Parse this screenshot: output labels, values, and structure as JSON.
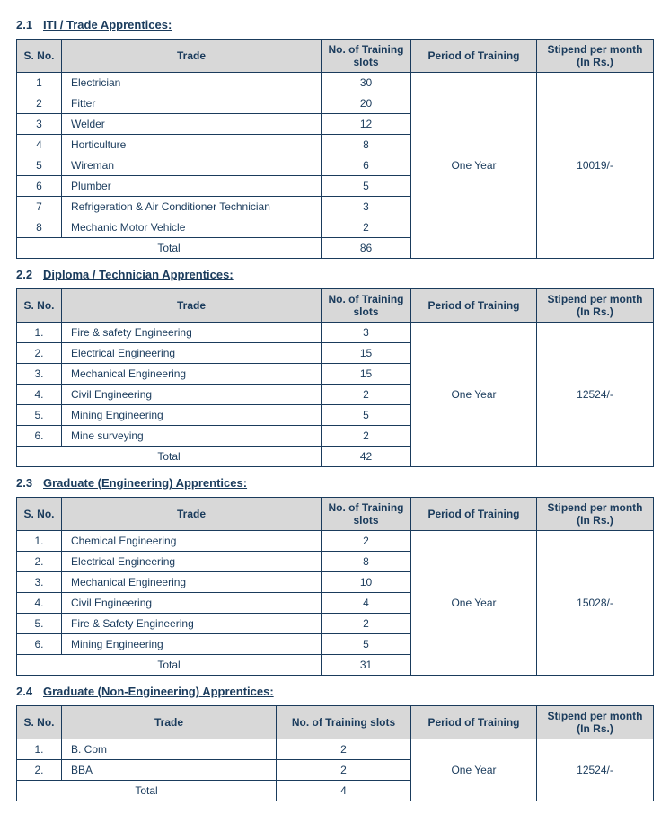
{
  "colors": {
    "text": "#1a3b5c",
    "header_bg": "#d8d8d8",
    "border": "#1a3b5c",
    "page_bg": "#ffffff"
  },
  "columns": {
    "sno": "S. No.",
    "trade": "Trade",
    "slots": "No. of Training slots",
    "period": "Period of Training",
    "stipend": "Stipend per month (In Rs.)"
  },
  "total_label": "Total",
  "sections": [
    {
      "num": "2.1",
      "title": "ITI / Trade Apprentices:",
      "period": "One Year",
      "stipend": "10019/-",
      "slots_col_width": 100,
      "rows": [
        {
          "sno": "1",
          "trade": "Electrician",
          "slots": "30"
        },
        {
          "sno": "2",
          "trade": "Fitter",
          "slots": "20"
        },
        {
          "sno": "3",
          "trade": "Welder",
          "slots": "12"
        },
        {
          "sno": "4",
          "trade": "Horticulture",
          "slots": "8"
        },
        {
          "sno": "5",
          "trade": "Wireman",
          "slots": "6"
        },
        {
          "sno": "6",
          "trade": "Plumber",
          "slots": "5"
        },
        {
          "sno": "7",
          "trade": "Refrigeration & Air Conditioner Technician",
          "slots": "3"
        },
        {
          "sno": "8",
          "trade": "Mechanic Motor Vehicle",
          "slots": "2"
        }
      ],
      "total": "86"
    },
    {
      "num": "2.2",
      "title": "Diploma / Technician Apprentices:",
      "period": "One Year",
      "stipend": "12524/-",
      "slots_col_width": 100,
      "rows": [
        {
          "sno": "1.",
          "trade": "Fire & safety Engineering",
          "slots": "3"
        },
        {
          "sno": "2.",
          "trade": "Electrical Engineering",
          "slots": "15"
        },
        {
          "sno": "3.",
          "trade": "Mechanical Engineering",
          "slots": "15"
        },
        {
          "sno": "4.",
          "trade": "Civil Engineering",
          "slots": "2"
        },
        {
          "sno": "5.",
          "trade": "Mining Engineering",
          "slots": "5"
        },
        {
          "sno": "6.",
          "trade": "Mine surveying",
          "slots": "2"
        }
      ],
      "total": "42"
    },
    {
      "num": "2.3",
      "title": "Graduate (Engineering) Apprentices:",
      "period": "One Year",
      "stipend": "15028/-",
      "slots_col_width": 100,
      "rows": [
        {
          "sno": "1.",
          "trade": "Chemical Engineering",
          "slots": "2"
        },
        {
          "sno": "2.",
          "trade": "Electrical Engineering",
          "slots": "8"
        },
        {
          "sno": "3.",
          "trade": "Mechanical Engineering",
          "slots": "10"
        },
        {
          "sno": "4.",
          "trade": "Civil Engineering",
          "slots": "4"
        },
        {
          "sno": "5.",
          "trade": "Fire & Safety Engineering",
          "slots": "2"
        },
        {
          "sno": "6.",
          "trade": "Mining Engineering",
          "slots": "5"
        }
      ],
      "total": "31"
    },
    {
      "num": "2.4",
      "title": "Graduate (Non-Engineering) Apprentices:",
      "period": "One Year",
      "stipend": "12524/-",
      "slots_col_width": 150,
      "rows": [
        {
          "sno": "1.",
          "trade": "B. Com",
          "slots": "2"
        },
        {
          "sno": "2.",
          "trade": "BBA",
          "slots": "2"
        }
      ],
      "total": "4"
    }
  ]
}
